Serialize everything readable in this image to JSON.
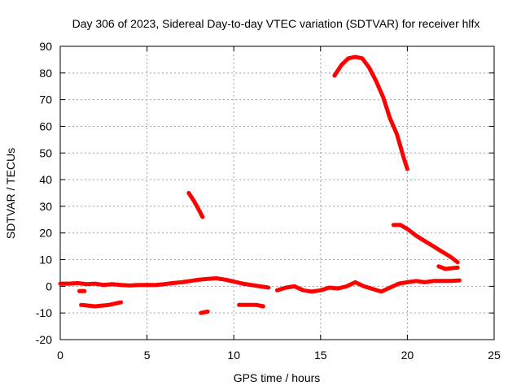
{
  "chart_data": {
    "type": "scatter",
    "title": "Day 306 of 2023, Sidereal Day-to-day VTEC variation (SDTVAR) for receiver hlfx",
    "xlabel": "GPS time / hours",
    "ylabel": "SDTVAR / TECUs",
    "xlim": [
      0,
      25
    ],
    "ylim": [
      -20,
      90
    ],
    "xticks": [
      "0",
      "5",
      "10",
      "15",
      "20",
      "25"
    ],
    "yticks": [
      "-20",
      "-10",
      "0",
      "10",
      "20",
      "30",
      "40",
      "50",
      "60",
      "70",
      "80",
      "90"
    ],
    "grid": true,
    "marker_color": "#ff0000",
    "series": [
      {
        "name": "track-main-near-zero",
        "x": [
          0,
          0.5,
          1,
          1.5,
          2,
          2.5,
          3,
          3.5,
          4,
          4.5,
          5,
          5.5,
          6,
          6.5,
          7,
          7.5,
          8,
          8.5,
          9,
          9.5,
          10,
          10.5,
          11,
          11.5,
          12
        ],
        "y": [
          1,
          1,
          1.2,
          0.8,
          1,
          0.5,
          0.8,
          0.5,
          0.3,
          0.5,
          0.5,
          0.5,
          0.8,
          1.2,
          1.5,
          2,
          2.5,
          2.8,
          3,
          2.5,
          1.8,
          1,
          0.5,
          0,
          -0.5
        ]
      },
      {
        "name": "track-main-low-dip",
        "x": [
          12.5,
          13,
          13.5,
          14,
          14.5,
          15,
          15.5,
          16,
          16.5,
          17,
          17.5,
          18,
          18.5,
          19,
          19.5,
          20,
          20.5,
          21,
          21.5,
          22,
          22.5,
          23
        ],
        "y": [
          -1.5,
          -0.5,
          0,
          -1.5,
          -2,
          -1.5,
          -0.5,
          -0.8,
          0,
          1.5,
          0,
          -1,
          -2,
          -0.5,
          1,
          1.5,
          2,
          1.5,
          2,
          2,
          2,
          2.2
        ]
      },
      {
        "name": "track-high-arc",
        "x": [
          15.8,
          16.2,
          16.6,
          17,
          17.4,
          17.8,
          18.2,
          18.6,
          19,
          19.4,
          19.8,
          20
        ],
        "y": [
          79,
          83,
          85.5,
          86,
          85.5,
          82,
          77,
          71,
          63,
          57,
          48,
          44
        ]
      },
      {
        "name": "track-descending-20",
        "x": [
          19.2,
          19.6,
          20,
          20.5,
          21,
          21.5,
          22,
          22.5,
          22.9
        ],
        "y": [
          23,
          23,
          21.5,
          19,
          17,
          15,
          13,
          11,
          9
        ]
      },
      {
        "name": "track-short-30",
        "x": [
          7.4,
          7.7,
          8,
          8.2
        ],
        "y": [
          35,
          32,
          28.5,
          26
        ]
      },
      {
        "name": "track-minus-seven",
        "x": [
          1.2,
          2,
          2.8,
          3.5
        ],
        "y": [
          -7,
          -7.5,
          -7,
          -6
        ]
      },
      {
        "name": "track-minus-seven-b",
        "x": [
          10.3,
          10.8,
          11.3,
          11.7
        ],
        "y": [
          -7,
          -7,
          -7,
          -7.5
        ]
      },
      {
        "name": "track-minus-ten",
        "x": [
          8.1,
          8.5
        ],
        "y": [
          -10,
          -9.5
        ]
      },
      {
        "name": "track-seven",
        "x": [
          21.8,
          22.2,
          22.6,
          22.9
        ],
        "y": [
          7.5,
          6.5,
          6.8,
          7
        ]
      },
      {
        "name": "track-minus-two",
        "x": [
          1.1,
          1.4
        ],
        "y": [
          -1.8,
          -1.8
        ]
      }
    ]
  }
}
